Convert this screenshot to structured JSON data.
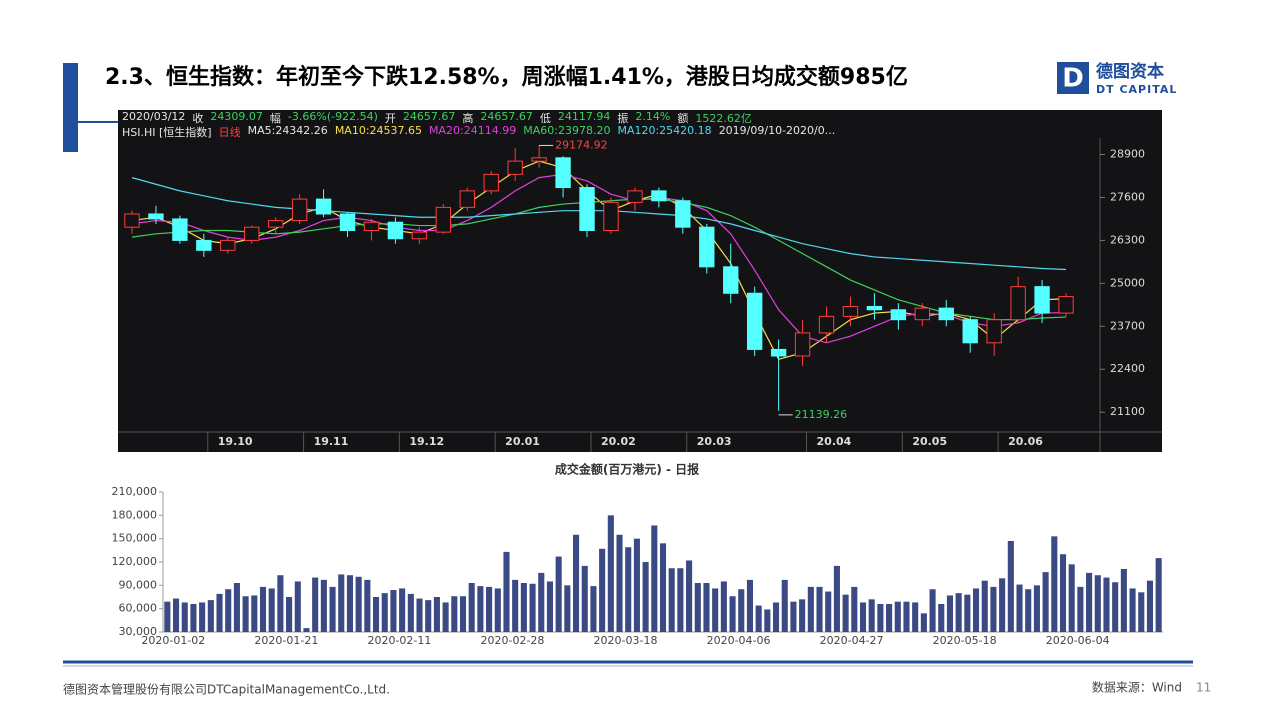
{
  "slide": {
    "title": "2.3、恒生指数：年初至今下跌12.58%，周涨幅1.41%，港股日均成交额985亿",
    "logo": {
      "letter": "D",
      "name": "德图资本",
      "sub": "DT CAPITAL"
    },
    "footer": {
      "company": "德图资本管理股份有限公司DTCapitalManagementCo.,Ltd.",
      "source": "数据来源：Wind",
      "page": "11"
    }
  },
  "chart_data": [
    {
      "type": "candlestick",
      "info": [
        "2020/03/12",
        "收",
        "24309.07",
        "幅",
        "-3.66%(-922.54)",
        "开",
        "24657.67",
        "高",
        "24657.67",
        "低",
        "24117.94",
        "振",
        "2.14%",
        "额",
        "1522.62亿"
      ],
      "info2": [
        "HSI.HI [恒生指数]",
        "日线",
        "MA5:24342.26",
        "MA10:24537.65",
        "MA20:24114.99",
        "MA60:23978.20",
        "MA120:25420.18",
        "2019/09/10-2020/0..."
      ],
      "info2_colors": [
        "#e6e6e6",
        "#ff4040",
        "#e6e6e6",
        "#f5e04a",
        "#e040e0",
        "#40d060",
        "#50d8f0",
        "#e6e6e6"
      ],
      "annotations": [
        "29174.92",
        "21139.26"
      ],
      "categories": [
        null,
        null,
        null,
        null,
        "19.10",
        null,
        null,
        null,
        "19.11",
        null,
        null,
        null,
        "19.12",
        null,
        null,
        null,
        "20.01",
        null,
        null,
        null,
        "20.02",
        null,
        null,
        null,
        "20.03",
        null,
        null,
        null,
        null,
        "20.04",
        null,
        null,
        null,
        "20.05",
        null,
        null,
        null,
        "20.06",
        null,
        null
      ],
      "open": [
        26700,
        27100,
        26950,
        26300,
        26000,
        26300,
        26700,
        26900,
        27550,
        27100,
        26600,
        26850,
        26350,
        26550,
        27300,
        27800,
        28300,
        28700,
        28800,
        27900,
        26600,
        27450,
        27800,
        27500,
        26700,
        25500,
        24700,
        23000,
        22800,
        23500,
        24000,
        24300,
        24200,
        23900,
        24250,
        23900,
        23200,
        23900,
        24900,
        24100
      ],
      "high": [
        27200,
        27350,
        27050,
        26500,
        26400,
        26750,
        27000,
        27700,
        27850,
        27150,
        26950,
        27000,
        26700,
        27400,
        27900,
        28400,
        29100,
        29174.92,
        28850,
        28000,
        27600,
        27900,
        27900,
        27600,
        26800,
        26200,
        24900,
        23300,
        23900,
        24300,
        24600,
        24700,
        24400,
        24400,
        24500,
        24000,
        24100,
        25200,
        25100,
        24700
      ],
      "low": [
        26500,
        26800,
        26200,
        25800,
        25900,
        26200,
        26500,
        26800,
        27000,
        26400,
        26300,
        26200,
        26200,
        26500,
        27200,
        27700,
        28100,
        28500,
        27600,
        26400,
        26500,
        27200,
        27300,
        26500,
        25300,
        24400,
        22800,
        21139.26,
        22500,
        23200,
        23700,
        23900,
        23600,
        23700,
        23700,
        22900,
        22800,
        23800,
        23800,
        24000
      ],
      "close": [
        27100,
        26950,
        26300,
        26000,
        26300,
        26700,
        26900,
        27550,
        27100,
        26600,
        26850,
        26350,
        26550,
        27300,
        27800,
        28300,
        28700,
        28800,
        27900,
        26600,
        27450,
        27800,
        27500,
        26700,
        25500,
        24700,
        23000,
        22800,
        23500,
        24000,
        24300,
        24200,
        23900,
        24250,
        23900,
        23200,
        23900,
        24900,
        24100,
        24600
      ],
      "up_color": "#ff3c3c",
      "down_color": "#54ffff",
      "lines": [
        {
          "color": "#f5e04a",
          "values": [
            26900,
            27000,
            26700,
            26300,
            26200,
            26350,
            26650,
            27100,
            27300,
            26900,
            26700,
            26600,
            26500,
            26800,
            27400,
            27900,
            28400,
            28700,
            28500,
            27800,
            27200,
            27500,
            27700,
            27300,
            26600,
            25600,
            24100,
            22700,
            22900,
            23400,
            23900,
            24100,
            24150,
            24000,
            24100,
            23900,
            23300,
            23900,
            24500,
            24538
          ]
        },
        {
          "color": "#e040e0",
          "values": [
            26800,
            26900,
            26850,
            26600,
            26400,
            26300,
            26400,
            26600,
            26900,
            27000,
            26900,
            26700,
            26600,
            26600,
            26900,
            27300,
            27800,
            28200,
            28300,
            28100,
            27700,
            27500,
            27600,
            27500,
            27200,
            26500,
            25400,
            24200,
            23400,
            23200,
            23400,
            23700,
            24000,
            24100,
            24050,
            23800,
            23700,
            23800,
            24100,
            24115
          ]
        },
        {
          "color": "#40d060",
          "values": [
            26400,
            26500,
            26550,
            26600,
            26600,
            26550,
            26500,
            26550,
            26650,
            26750,
            26800,
            26800,
            26750,
            26750,
            26800,
            26950,
            27100,
            27300,
            27400,
            27450,
            27500,
            27550,
            27550,
            27450,
            27300,
            27050,
            26700,
            26300,
            25900,
            25500,
            25100,
            24800,
            24500,
            24300,
            24100,
            24000,
            23900,
            23900,
            23950,
            23980
          ]
        },
        {
          "color": "#50d8f0",
          "values": [
            28200,
            28000,
            27800,
            27650,
            27500,
            27400,
            27300,
            27250,
            27200,
            27150,
            27100,
            27050,
            27000,
            27000,
            27000,
            27050,
            27100,
            27150,
            27200,
            27200,
            27200,
            27150,
            27100,
            27050,
            26950,
            26800,
            26600,
            26400,
            26200,
            26050,
            25900,
            25800,
            25750,
            25700,
            25650,
            25600,
            25550,
            25500,
            25450,
            25420
          ]
        }
      ],
      "ylim": [
        20500,
        29400
      ],
      "yticks": [
        21100,
        22400,
        23700,
        25000,
        26300,
        27600,
        28900
      ]
    },
    {
      "type": "bar",
      "title": "成交金额(百万港元) - 日报",
      "color": "#3b4a84",
      "categories": [
        "2020-01-02",
        null,
        null,
        null,
        null,
        null,
        null,
        null,
        null,
        null,
        null,
        null,
        null,
        "2020-01-21",
        null,
        null,
        null,
        null,
        null,
        null,
        null,
        null,
        null,
        null,
        null,
        null,
        "2020-02-11",
        null,
        null,
        null,
        null,
        null,
        null,
        null,
        null,
        null,
        null,
        null,
        null,
        "2020-02-28",
        null,
        null,
        null,
        null,
        null,
        null,
        null,
        null,
        null,
        null,
        null,
        null,
        "2020-03-18",
        null,
        null,
        null,
        null,
        null,
        null,
        null,
        null,
        null,
        null,
        null,
        null,
        "2020-04-06",
        null,
        null,
        null,
        null,
        null,
        null,
        null,
        null,
        null,
        null,
        null,
        null,
        "2020-04-27",
        null,
        null,
        null,
        null,
        null,
        null,
        null,
        null,
        null,
        null,
        null,
        null,
        "2020-05-18",
        null,
        null,
        null,
        null,
        null,
        null,
        null,
        null,
        null,
        null,
        null,
        null,
        "2020-06-04",
        null,
        null,
        null,
        null,
        null,
        null,
        null,
        null,
        null,
        null
      ],
      "values": [
        69000,
        73000,
        68000,
        66000,
        68000,
        71000,
        79000,
        85000,
        93000,
        76000,
        77000,
        88000,
        86000,
        103000,
        75000,
        95000,
        35000,
        100000,
        97000,
        88000,
        104000,
        103000,
        101000,
        97000,
        75000,
        80000,
        84000,
        86000,
        79000,
        73000,
        71000,
        75000,
        68000,
        76000,
        76000,
        93000,
        89000,
        88000,
        86000,
        133000,
        97000,
        93000,
        92000,
        106000,
        95000,
        127000,
        90000,
        155000,
        115000,
        89000,
        137000,
        180000,
        155000,
        139000,
        150000,
        120000,
        167000,
        144000,
        112000,
        112000,
        122000,
        93000,
        93000,
        86000,
        95000,
        76000,
        85000,
        97000,
        64000,
        59000,
        68000,
        97000,
        69000,
        72000,
        88000,
        88000,
        82000,
        115000,
        78000,
        88000,
        68000,
        72000,
        66000,
        66000,
        69000,
        69000,
        68000,
        54000,
        85000,
        66000,
        77000,
        80000,
        78000,
        86000,
        96000,
        88000,
        99000,
        147000,
        91000,
        85000,
        90000,
        107000,
        153000,
        130000,
        117000,
        88000,
        106000,
        103000,
        100000,
        94000,
        111000,
        86000,
        81000,
        96000,
        125000
      ],
      "ylim": [
        30000,
        210000
      ],
      "yticks": [
        {
          "value": 30000,
          "label": "30,000"
        },
        {
          "value": 60000,
          "label": "60,000"
        },
        {
          "value": 90000,
          "label": "90,000"
        },
        {
          "value": 120000,
          "label": "120,000"
        },
        {
          "value": 150000,
          "label": "150,000"
        },
        {
          "value": 180000,
          "label": "180,000"
        },
        {
          "value": 210000,
          "label": "210,000"
        }
      ]
    }
  ]
}
